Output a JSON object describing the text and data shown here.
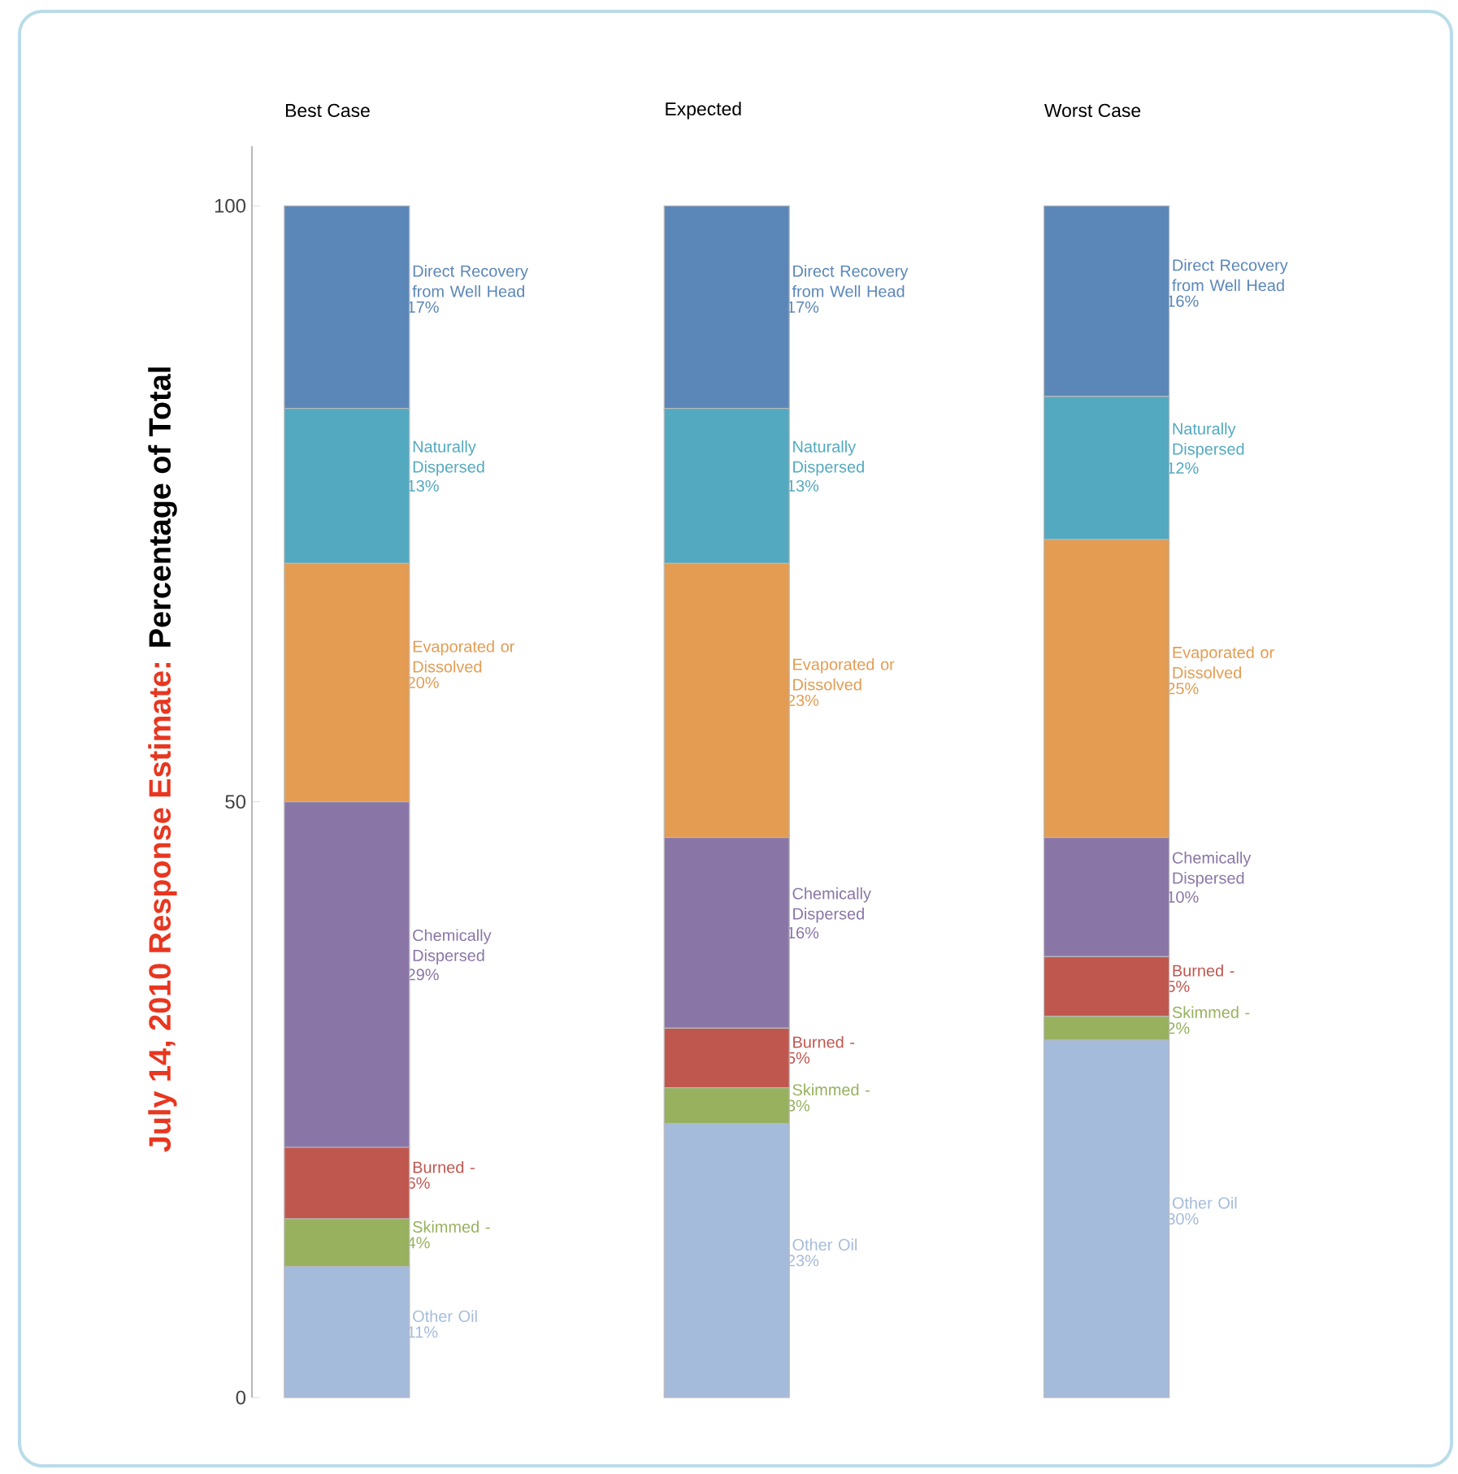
{
  "chart_data": {
    "type": "bar",
    "stacked": true,
    "title": "July 14, 2010 Response Estimate:",
    "ylabel": "Percentage of Total",
    "categories": [
      "Best Case",
      "Expected",
      "Worst Case"
    ],
    "ylim": [
      0,
      105
    ],
    "yticks": [
      0,
      50,
      100
    ],
    "series": [
      {
        "name": "Other Oil",
        "color": "#a5bbdb",
        "values": [
          11,
          23,
          30
        ],
        "value_labels": [
          "11%",
          "23%",
          "30%"
        ]
      },
      {
        "name": "Skimmed -",
        "color": "#97b15e",
        "values": [
          4,
          3,
          2
        ],
        "value_labels": [
          "4%",
          "3%",
          "2%"
        ]
      },
      {
        "name": "Burned -",
        "color": "#c0574f",
        "values": [
          6,
          5,
          5
        ],
        "value_labels": [
          "6%",
          "5%",
          "5%"
        ]
      },
      {
        "name": "Chemically Dispersed",
        "color": "#8a76a6",
        "values": [
          29,
          16,
          10
        ],
        "value_labels": [
          "29%",
          "16%",
          "10%"
        ]
      },
      {
        "name": "Evaporated or Dissolved",
        "color": "#e39c52",
        "values": [
          20,
          23,
          25
        ],
        "value_labels": [
          "20%",
          "23%",
          "25%"
        ]
      },
      {
        "name": "Naturally Dispersed",
        "color": "#52a9c0",
        "values": [
          13,
          13,
          12
        ],
        "value_labels": [
          "13%",
          "13%",
          "12%"
        ]
      },
      {
        "name": "Direct Recovery from Well Head",
        "color": "#5b87b8",
        "values": [
          17,
          17,
          16
        ],
        "value_labels": [
          "17%",
          "17%",
          "16%"
        ]
      }
    ]
  }
}
